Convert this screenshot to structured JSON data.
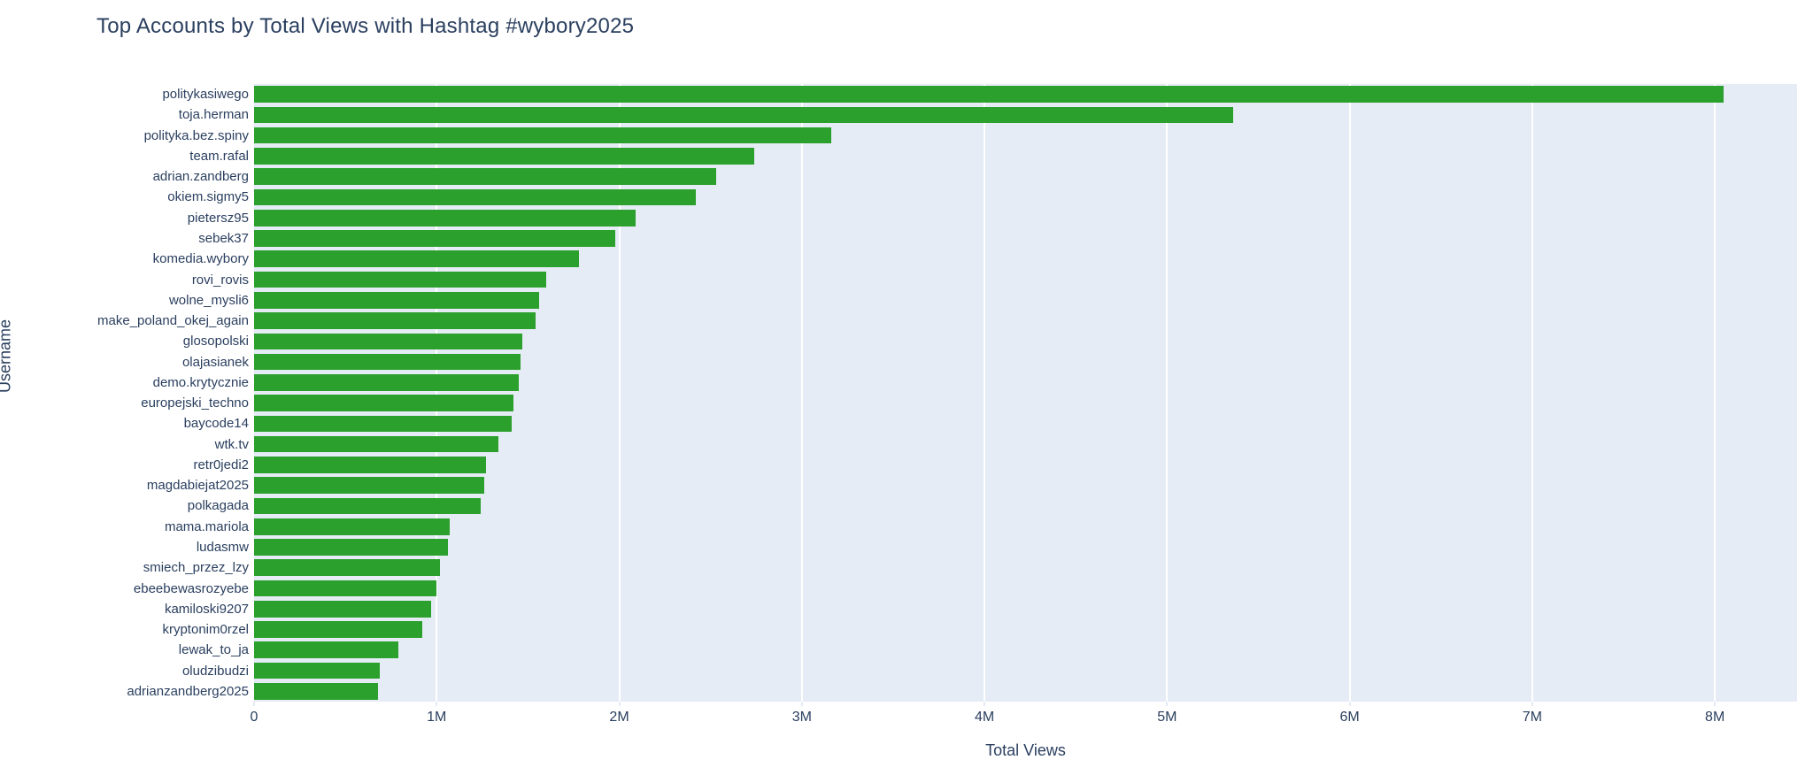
{
  "page": {
    "background_color": "#ffffff"
  },
  "chart_data": {
    "type": "bar",
    "orientation": "horizontal",
    "title": "Top Accounts by Total Views with Hashtag #wybory2025",
    "xlabel": "Total Views",
    "ylabel": "Username",
    "legend": "none",
    "grid": "vertical white gridlines on shaded plot area",
    "xlim": [
      0,
      8450000
    ],
    "x_ticks": [
      {
        "value": 0,
        "label": "0"
      },
      {
        "value": 1000000,
        "label": "1M"
      },
      {
        "value": 2000000,
        "label": "2M"
      },
      {
        "value": 3000000,
        "label": "3M"
      },
      {
        "value": 4000000,
        "label": "4M"
      },
      {
        "value": 5000000,
        "label": "5M"
      },
      {
        "value": 6000000,
        "label": "6M"
      },
      {
        "value": 7000000,
        "label": "7M"
      },
      {
        "value": 8000000,
        "label": "8M"
      }
    ],
    "colors": {
      "bar": "#2ca02c",
      "plot_background": "#e5ecf6",
      "grid_line": "#ffffff",
      "text": "#2a3f5f"
    },
    "categories": [
      "politykasiwego",
      "toja.herman",
      "polityka.bez.spiny",
      "team.rafal",
      "adrian.zandberg",
      "okiem.sigmy5",
      "pietersz95",
      "sebek37",
      "komedia.wybory",
      "rovi_rovis",
      "wolne_mysli6",
      "make_poland_okej_again",
      "glosopolski",
      "olajasianek",
      "demo.krytycznie",
      "europejski_techno",
      "baycode14",
      "wtk.tv",
      "retr0jedi2",
      "magdabiejat2025",
      "polkagada",
      "mama.mariola",
      "ludasmw",
      "smiech_przez_lzy",
      "ebeebewasrozyebe",
      "kamiloski9207",
      "kryptonim0rzel",
      "lewak_to_ja",
      "oludzibudzi",
      "adrianzandberg2025"
    ],
    "values": [
      8050000,
      5360000,
      3160000,
      2740000,
      2530000,
      2420000,
      2090000,
      1980000,
      1780000,
      1600000,
      1560000,
      1540000,
      1470000,
      1460000,
      1450000,
      1420000,
      1410000,
      1340000,
      1270000,
      1260000,
      1240000,
      1070000,
      1060000,
      1020000,
      1000000,
      970000,
      920000,
      790000,
      690000,
      680000
    ]
  }
}
